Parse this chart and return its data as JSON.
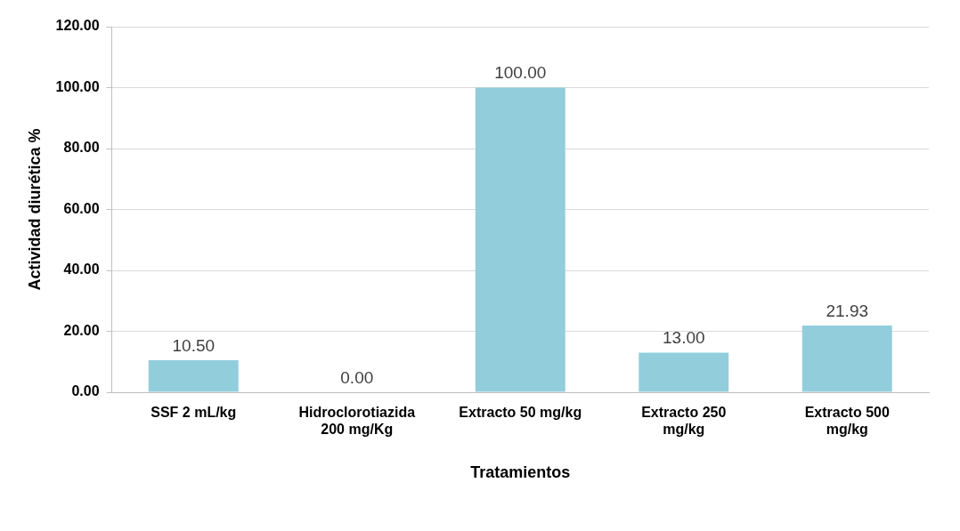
{
  "chart_data": {
    "type": "bar",
    "xlabel": "Tratamientos",
    "ylabel": "Actividad diurética %",
    "categories": [
      "SSF 2 mL/kg",
      "Hidroclorotiazida\n200 mg/Kg",
      "Extracto 50 mg/kg",
      "Extracto 250\nmg/kg",
      "Extracto 500\nmg/kg"
    ],
    "values": [
      10.5,
      0,
      100,
      13,
      21.93
    ],
    "value_labels": [
      "10.50",
      "0.00",
      "100.00",
      "13.00",
      "21.93"
    ],
    "color": "#92cddc",
    "ylim": [
      0,
      120
    ],
    "yticks": [
      {
        "value": 0,
        "label": "0.00"
      },
      {
        "value": 20,
        "label": "20.00"
      },
      {
        "value": 40,
        "label": "40.00"
      },
      {
        "value": 60,
        "label": "60.00"
      },
      {
        "value": 80,
        "label": "80.00"
      },
      {
        "value": 100,
        "label": "100.00"
      },
      {
        "value": 120,
        "label": "120.00"
      }
    ],
    "grid": "y",
    "legend": false
  }
}
